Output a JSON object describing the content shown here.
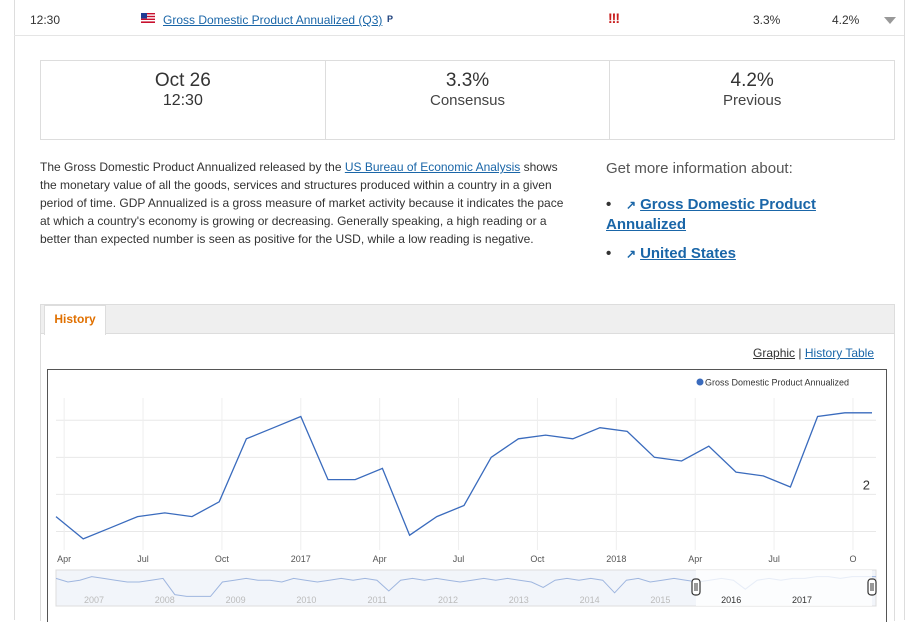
{
  "event_row": {
    "time": "12:30",
    "flag_icon": "us-flag-icon",
    "event_name": "Gross Domestic Product Annualized (Q3)",
    "preliminary_badge": "P",
    "importance": "!!!",
    "consensus": "3.3%",
    "previous": "4.2%"
  },
  "info_box": {
    "date": "Oct 26",
    "time": "12:30",
    "consensus_value": "3.3%",
    "consensus_label": "Consensus",
    "previous_value": "4.2%",
    "previous_label": "Previous"
  },
  "description": {
    "before_link": "The Gross Domestic Product Annualized released by the ",
    "link_text": "US Bureau of Economic Analysis",
    "after_link": " shows the monetary value of all the goods, services and structures produced within a country in a given period of time. GDP Annualized is a gross measure of market activity because it indicates the pace at which a country's economy is growing or decreasing. Generally speaking, a high reading or a better than expected number is seen as positive for the USD, while a low reading is negative."
  },
  "more_info": {
    "heading": "Get more information about:",
    "links": [
      "Gross Domestic Product Annualized",
      "United States"
    ]
  },
  "history": {
    "tab_label": "History",
    "view_graphic": "Graphic",
    "separator": "|",
    "view_table": "History Table"
  },
  "colors": {
    "link": "#1a66a8",
    "tab_active": "#e07000",
    "importance": "#c81e1e",
    "series_line": "#3a6bbd"
  },
  "chart_data": {
    "type": "line",
    "series": [
      {
        "name": "Gross Domestic Product Annualized",
        "values": [
          1.4,
          0.8,
          1.1,
          1.4,
          1.5,
          1.4,
          1.8,
          3.5,
          3.8,
          4.1,
          2.4,
          2.4,
          2.7,
          0.9,
          1.4,
          1.7,
          3.0,
          3.5,
          3.6,
          3.5,
          3.8,
          3.7,
          3.0,
          2.9,
          3.3,
          2.6,
          2.5,
          2.2,
          4.1,
          4.2,
          4.2
        ]
      }
    ],
    "x_tick_labels": [
      "Apr",
      "Jul",
      "Oct",
      "2017",
      "Apr",
      "Jul",
      "Oct",
      "2018",
      "Apr",
      "Jul",
      "O"
    ],
    "y_tick_labels": [
      "2"
    ],
    "legend_position": "top-right",
    "grid": true,
    "navigator_year_labels": [
      "2007",
      "2008",
      "2009",
      "2010",
      "2011",
      "2012",
      "2013",
      "2014",
      "2015",
      "2016",
      "2017"
    ]
  }
}
